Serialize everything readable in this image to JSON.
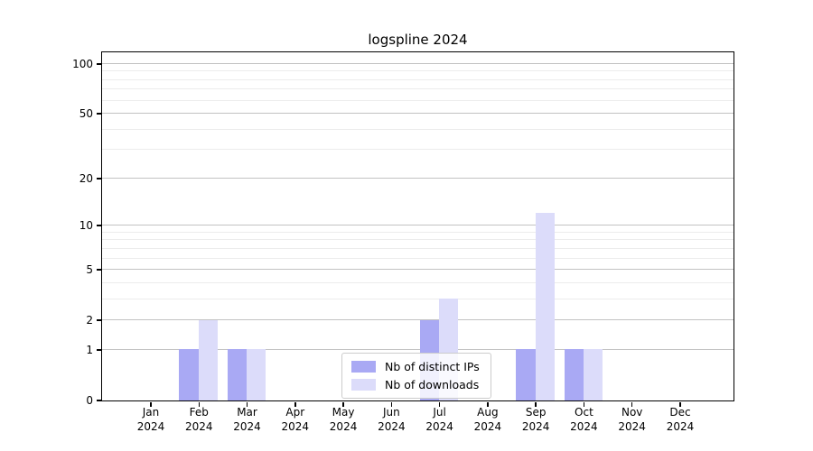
{
  "chart_data": {
    "type": "bar",
    "title": "logspline 2024",
    "categories": [
      "Jan",
      "Feb",
      "Mar",
      "Apr",
      "May",
      "Jun",
      "Jul",
      "Aug",
      "Sep",
      "Oct",
      "Nov",
      "Dec"
    ],
    "x_year_label": "2024",
    "series": [
      {
        "name": "Nb of distinct IPs",
        "color": "#a9a9f4",
        "values": [
          0,
          1,
          1,
          0,
          0,
          0,
          2,
          0,
          1,
          1,
          0,
          0
        ]
      },
      {
        "name": "Nb of downloads",
        "color": "#dcdcfa",
        "values": [
          0,
          2,
          1,
          0,
          0,
          0,
          3,
          0,
          12,
          1,
          0,
          0
        ]
      }
    ],
    "xlabel": "",
    "ylabel": "",
    "y_scale": "log1p",
    "y_major_ticks": [
      0,
      1,
      2,
      5,
      10,
      20,
      50,
      100
    ],
    "y_minor_ticks": [
      3,
      4,
      6,
      7,
      8,
      9,
      30,
      40,
      60,
      70,
      80,
      90
    ],
    "ylim": [
      0,
      117.5
    ],
    "grid": true,
    "legend_position": "lower center",
    "colors": {
      "major_grid": "#c2c2c2",
      "minor_grid": "#ececec",
      "spine": "#000000",
      "background": "#ffffff"
    }
  }
}
